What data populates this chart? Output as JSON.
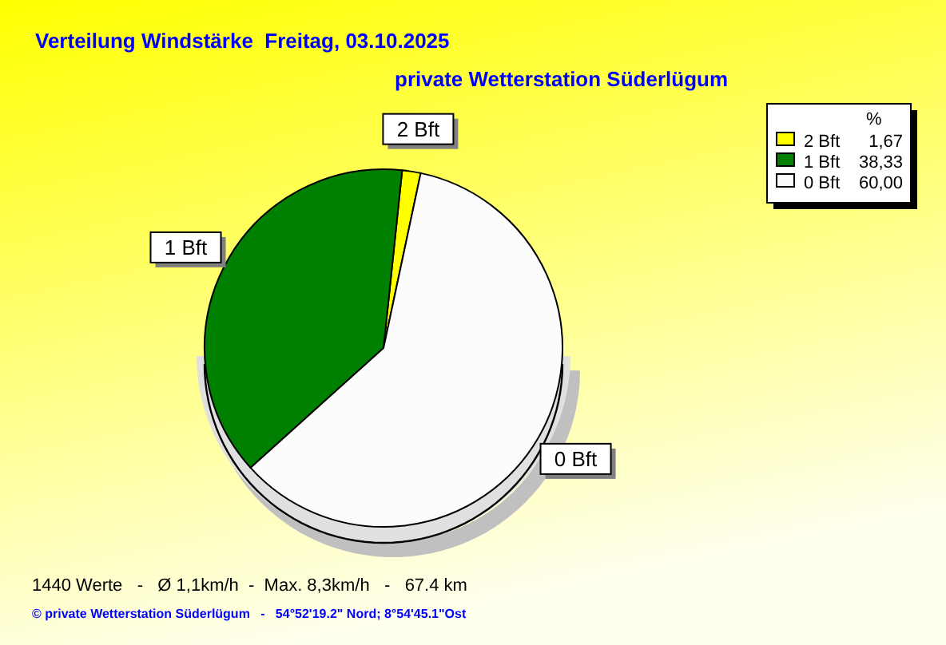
{
  "chart_data": {
    "type": "pie",
    "title": "Verteilung Windstärke  Freitag, 03.10.2025",
    "subtitle": "private Wetterstation Süderlügum",
    "categories": [
      "2 Bft",
      "1 Bft",
      "0 Bft"
    ],
    "values": [
      1.67,
      38.33,
      60.0
    ],
    "colors": [
      "#ffff00",
      "#008000",
      "#fcfcfc"
    ],
    "value_labels": [
      "1,67",
      "38,33",
      "60,00"
    ],
    "legend": "top right",
    "legend_title": "%",
    "annotations": [
      "1440 Werte   -   Ø 1,1km/h  -  Max. 8,3km/h   -   67.4 km",
      "© private Wetterstation Süderlügum   -   54°52'19.2\" Nord; 8°54'45.1\"Ost"
    ]
  }
}
